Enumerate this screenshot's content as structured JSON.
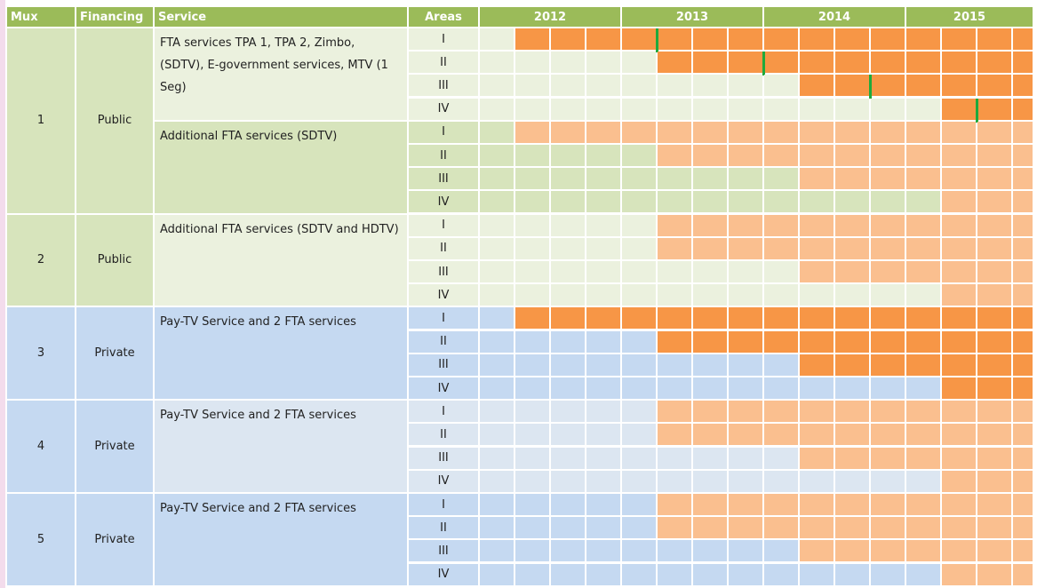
{
  "header": {
    "mux": "Mux",
    "financing": "Financing",
    "service": "Service",
    "areas": "Areas",
    "years": [
      "2012",
      "2013",
      "2014",
      "2015"
    ]
  },
  "groups": [
    {
      "mux": "1",
      "financing": "Public",
      "color": "#d7e4bc",
      "services": [
        {
          "name": "FTA services TPA 1, TPA 2, Zimbo, (SDTV), E-government services, MTV (1 Seg)",
          "color": "#ebf1de",
          "areas": [
            {
              "area": "I",
              "start": 1,
              "fill": "#f79646",
              "marker": 5
            },
            {
              "area": "II",
              "start": 5,
              "fill": "#f79646",
              "marker": 8
            },
            {
              "area": "III",
              "start": 9,
              "fill": "#f79646",
              "marker": 11
            },
            {
              "area": "IV",
              "start": 13,
              "fill": "#f79646",
              "marker": 14
            }
          ]
        },
        {
          "name": "Additional FTA services (SDTV)",
          "color": "#d7e4bc",
          "areas": [
            {
              "area": "I",
              "start": 1,
              "fill": "#fabf8f"
            },
            {
              "area": "II",
              "start": 5,
              "fill": "#fabf8f"
            },
            {
              "area": "III",
              "start": 9,
              "fill": "#fabf8f"
            },
            {
              "area": "IV",
              "start": 13,
              "fill": "#fabf8f"
            }
          ]
        }
      ]
    },
    {
      "mux": "2",
      "financing": "Public",
      "color": "#d7e4bc",
      "services": [
        {
          "name": "Additional FTA services (SDTV and HDTV)",
          "color": "#ebf1de",
          "areas": [
            {
              "area": "I",
              "start": 5,
              "fill": "#fabf8f"
            },
            {
              "area": "II",
              "start": 5,
              "fill": "#fabf8f"
            },
            {
              "area": "III",
              "start": 9,
              "fill": "#fabf8f"
            },
            {
              "area": "IV",
              "start": 13,
              "fill": "#fabf8f"
            }
          ]
        }
      ]
    },
    {
      "mux": "3",
      "financing": "Private",
      "color": "#c5d9f1",
      "services": [
        {
          "name": "Pay-TV Service and 2 FTA services",
          "color": "#c5d9f1",
          "areas": [
            {
              "area": "I",
              "start": 1,
              "fill": "#f79646"
            },
            {
              "area": "II",
              "start": 5,
              "fill": "#f79646"
            },
            {
              "area": "III",
              "start": 9,
              "fill": "#f79646"
            },
            {
              "area": "IV",
              "start": 13,
              "fill": "#f79646"
            }
          ]
        }
      ]
    },
    {
      "mux": "4",
      "financing": "Private",
      "color": "#c5d9f1",
      "services": [
        {
          "name": "Pay-TV Service and 2 FTA services",
          "color": "#dce6f1",
          "areas": [
            {
              "area": "I",
              "start": 5,
              "fill": "#fabf8f"
            },
            {
              "area": "II",
              "start": 5,
              "fill": "#fabf8f"
            },
            {
              "area": "III",
              "start": 9,
              "fill": "#fabf8f"
            },
            {
              "area": "IV",
              "start": 13,
              "fill": "#fabf8f"
            }
          ]
        }
      ]
    },
    {
      "mux": "5",
      "financing": "Private",
      "color": "#c5d9f1",
      "services": [
        {
          "name": "Pay-TV Service and 2 FTA services",
          "color": "#c5d9f1",
          "areas": [
            {
              "area": "I",
              "start": 5,
              "fill": "#fabf8f"
            },
            {
              "area": "II",
              "start": 5,
              "fill": "#fabf8f"
            },
            {
              "area": "III",
              "start": 9,
              "fill": "#fabf8f"
            },
            {
              "area": "IV",
              "start": 13,
              "fill": "#fabf8f"
            }
          ]
        }
      ]
    }
  ]
}
